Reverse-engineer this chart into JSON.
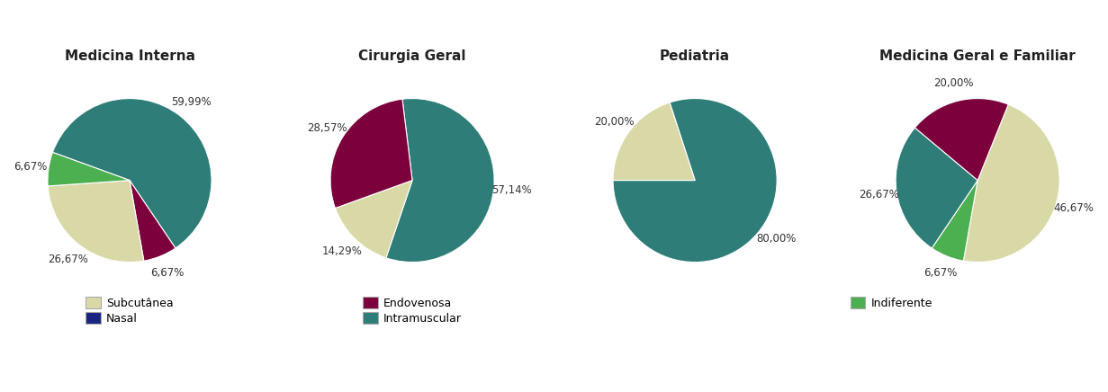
{
  "charts": [
    {
      "title": "Medicina Interna",
      "slices": [
        {
          "label": "Intramuscular",
          "value": 60.0,
          "color": "#2e7d78"
        },
        {
          "label": "Endovenosa",
          "value": 6.67,
          "color": "#7b003c"
        },
        {
          "label": "Subcutânea",
          "value": 26.67,
          "color": "#d9d9a8"
        },
        {
          "label": "Indiferente",
          "value": 6.67,
          "color": "#4caf50"
        }
      ],
      "startangle": 160
    },
    {
      "title": "Cirurgia Geral",
      "slices": [
        {
          "label": "Intramuscular",
          "value": 57.14,
          "color": "#2e7d78"
        },
        {
          "label": "Subcutânea",
          "value": 14.29,
          "color": "#d9d9a8"
        },
        {
          "label": "Endovenosa",
          "value": 28.57,
          "color": "#7b003c"
        }
      ],
      "startangle": 97
    },
    {
      "title": "Pediatria",
      "slices": [
        {
          "label": "Intramuscular",
          "value": 80.0,
          "color": "#2e7d78"
        },
        {
          "label": "Subcutânea",
          "value": 20.0,
          "color": "#d9d9a8"
        }
      ],
      "startangle": 108
    },
    {
      "title": "Medicina Geral e Familiar",
      "slices": [
        {
          "label": "Subcutânea",
          "value": 46.67,
          "color": "#d9d9a8"
        },
        {
          "label": "Indiferente",
          "value": 6.67,
          "color": "#4caf50"
        },
        {
          "label": "Intramuscular",
          "value": 26.67,
          "color": "#2e7d78"
        },
        {
          "label": "Endovenosa",
          "value": 20.0,
          "color": "#7b003c"
        }
      ],
      "startangle": 68
    }
  ],
  "legend_items": [
    {
      "label": "Subcutânea",
      "color": "#d9d9a8"
    },
    {
      "label": "Nasal",
      "color": "#1a237e"
    },
    {
      "label": "Endovenosa",
      "color": "#7b003c"
    },
    {
      "label": "Intramuscular",
      "color": "#2e7d78"
    },
    {
      "label": "Indiferente",
      "color": "#4caf50"
    }
  ],
  "title_fontsize": 11,
  "label_fontsize": 8.5,
  "background_color": "#ffffff",
  "pctdistance": 1.22
}
